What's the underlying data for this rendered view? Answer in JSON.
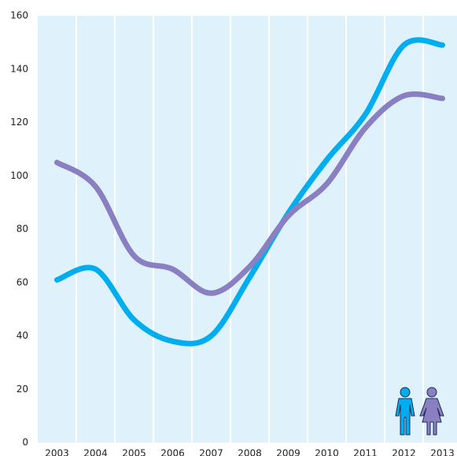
{
  "chart_data": {
    "type": "line",
    "categories": [
      "2003",
      "2004",
      "2005",
      "2006",
      "2007",
      "2008",
      "2009",
      "2010",
      "2011",
      "2012",
      "2013"
    ],
    "series": [
      {
        "color": "#00aeef",
        "values": [
          61,
          65,
          46,
          38,
          40,
          62,
          86,
          106,
          123,
          149,
          149
        ]
      },
      {
        "color": "#8a7fc0",
        "values": [
          105,
          96,
          70,
          65,
          56,
          66,
          85,
          97,
          118,
          130,
          129
        ]
      }
    ],
    "ylim": [
      0,
      160
    ],
    "yticks": [
      0,
      20,
      40,
      60,
      80,
      100,
      120,
      140,
      160
    ],
    "grid": true
  }
}
